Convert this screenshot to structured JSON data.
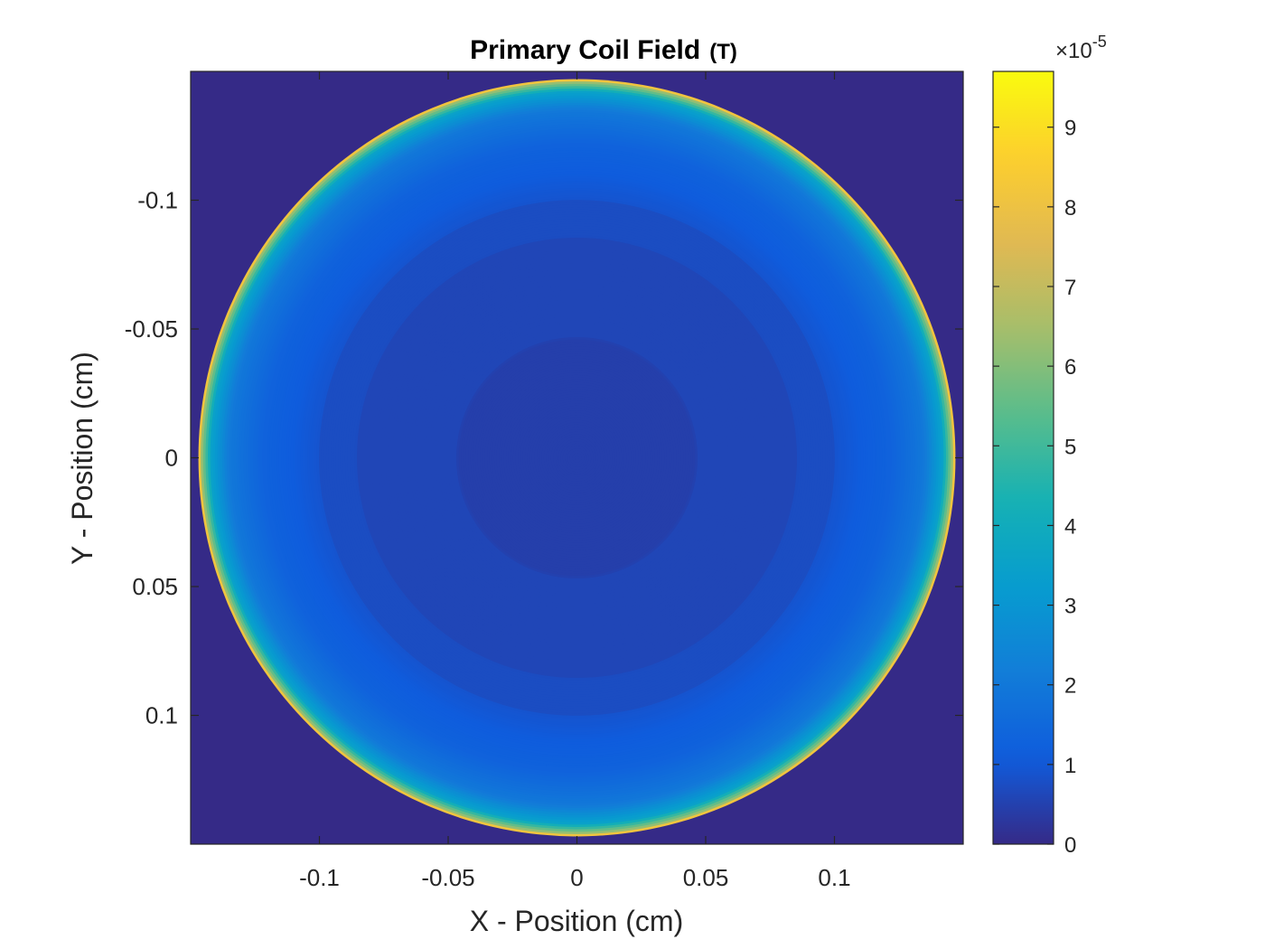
{
  "chart_data": {
    "type": "heatmap",
    "title": "Primary Coil Field",
    "title_unit": "(T)",
    "xlabel": "X - Position (cm)",
    "ylabel": "Y - Position (cm)",
    "xlim": [
      -0.15,
      0.15
    ],
    "ylim": [
      -0.15,
      0.15
    ],
    "y_axis_direction": "reversed",
    "x_ticks": [
      -0.1,
      -0.05,
      0,
      0.05,
      0.1
    ],
    "x_tick_labels": [
      "-0.1",
      "-0.05",
      "0",
      "0.05",
      "0.1"
    ],
    "y_ticks": [
      -0.1,
      -0.05,
      0,
      0.05,
      0.1
    ],
    "y_tick_labels": [
      "-0.1",
      "-0.05",
      "0",
      "0.05",
      "0.1"
    ],
    "grid": false,
    "colormap": "parula",
    "background_color": "#352a87",
    "field_region": {
      "shape": "disk",
      "center": [
        0,
        0
      ],
      "radius": 0.147
    },
    "radial_profile": {
      "r": [
        0,
        0.046,
        0.047,
        0.085,
        0.086,
        0.1,
        0.1,
        0.122,
        0.135,
        0.142,
        0.146,
        0.147
      ],
      "value": [
        4.5e-06,
        4.5e-06,
        6e-06,
        6e-06,
        7.5e-06,
        7.5e-06,
        9e-06,
        1.3e-05,
        2e-05,
        3.5e-05,
        6.5e-05,
        9.5e-05
      ]
    },
    "colorbar": {
      "min": 0,
      "max": 9.7,
      "ticks": [
        0,
        1,
        2,
        3,
        4,
        5,
        6,
        7,
        8,
        9
      ],
      "tick_labels": [
        "0",
        "1",
        "2",
        "3",
        "4",
        "5",
        "6",
        "7",
        "8",
        "9"
      ],
      "exponent_label": "×10",
      "exponent_power": "-5"
    }
  }
}
